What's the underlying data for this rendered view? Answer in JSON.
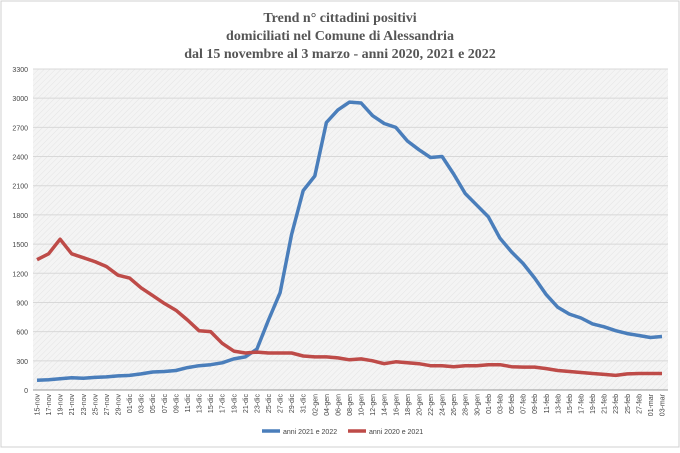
{
  "chart_data": {
    "type": "line",
    "title": [
      "Trend n° cittadini positivi",
      "domiciliati nel Comune di Alessandria",
      "dal 15 novembre al 3 marzo - anni 2020, 2021 e 2022"
    ],
    "categories": [
      "15-nov",
      "17-nov",
      "19-nov",
      "21-nov",
      "23-nov",
      "25-nov",
      "27-nov",
      "29-nov",
      "01-dic",
      "03-dic",
      "05-dic",
      "07-dic",
      "09-dic",
      "11-dic",
      "13-dic",
      "15-dic",
      "17-dic",
      "19-dic",
      "21-dic",
      "23-dic",
      "25-dic",
      "27-dic",
      "29-dic",
      "31-dic",
      "02-gen",
      "04-gen",
      "06-gen",
      "08-gen",
      "10-gen",
      "12-gen",
      "14-gen",
      "16-gen",
      "18-gen",
      "20-gen",
      "22-gen",
      "24-gen",
      "26-gen",
      "28-gen",
      "30-gen",
      "01-feb",
      "03-feb",
      "05-feb",
      "07-feb",
      "09-feb",
      "11-feb",
      "13-feb",
      "15-feb",
      "17-feb",
      "19-feb",
      "21-feb",
      "23-feb",
      "25-feb",
      "27-feb",
      "01-mar",
      "03-mar"
    ],
    "series": [
      {
        "name": "anni 2021 e 2022",
        "color": "#4a7ebb",
        "values": [
          100,
          105,
          115,
          125,
          120,
          130,
          135,
          145,
          150,
          165,
          185,
          190,
          200,
          230,
          250,
          260,
          280,
          320,
          340,
          420,
          720,
          1000,
          1600,
          2050,
          2200,
          2750,
          2880,
          2960,
          2950,
          2820,
          2740,
          2700,
          2560,
          2470,
          2390,
          2400,
          2220,
          2020,
          1900,
          1780,
          1560,
          1420,
          1300,
          1150,
          980,
          850,
          780,
          740,
          680,
          650,
          610,
          580,
          560,
          540,
          550
        ]
      },
      {
        "name": "anni 2020 e 2021",
        "color": "#be4b48",
        "values": [
          1340,
          1400,
          1550,
          1400,
          1360,
          1320,
          1270,
          1180,
          1150,
          1050,
          970,
          890,
          820,
          720,
          610,
          600,
          480,
          400,
          380,
          390,
          380,
          380,
          380,
          350,
          340,
          340,
          330,
          310,
          320,
          300,
          270,
          290,
          280,
          270,
          250,
          250,
          240,
          250,
          250,
          260,
          260,
          240,
          235,
          235,
          220,
          200,
          190,
          180,
          170,
          160,
          150,
          165,
          170,
          170,
          170
        ]
      }
    ],
    "ylim": [
      0,
      3300
    ],
    "yticks": [
      0,
      300,
      600,
      900,
      1200,
      1500,
      1800,
      2100,
      2400,
      2700,
      3000,
      3300
    ],
    "grid": true
  }
}
